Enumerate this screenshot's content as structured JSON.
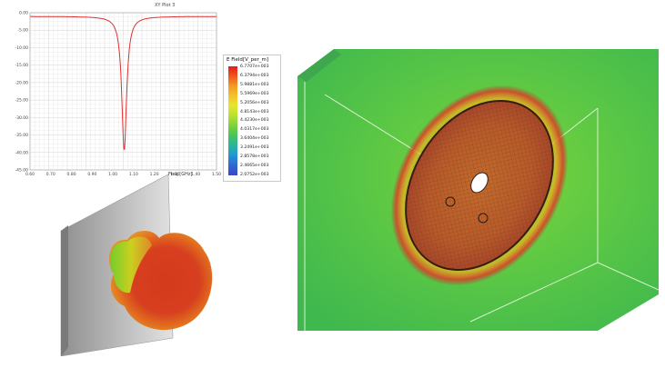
{
  "plot": {
    "title": "XY Plot 3",
    "y_ticks": [
      "0.00",
      "-5.00",
      "-10.00",
      "-15.00",
      "-20.00",
      "-25.00",
      "-30.00",
      "-35.00",
      "-40.00",
      "-45.00"
    ],
    "x_ticks": [
      "0.60",
      "0.70",
      "0.80",
      "0.90",
      "1.00",
      "1.10",
      "1.20",
      "1.30",
      "1.40",
      "1.50"
    ],
    "curve_color": "#e03030",
    "xlabel": "Freq [GHz]"
  },
  "legend": {
    "title": "E Field[V_per_m]",
    "ticks": [
      "6.7707e+003",
      "6.3794e+003",
      "5.9881e+003",
      "5.5969e+003",
      "5.2056e+003",
      "4.8143e+003",
      "4.4230e+003",
      "4.0317e+003",
      "3.6404e+003",
      "3.2491e+003",
      "2.8578e+003",
      "2.4665e+003",
      "2.0752e+003"
    ]
  },
  "colors": {
    "sim_background": "#4bbf3e",
    "hot": "#c0392b",
    "pattern_red": "#d63a1f"
  },
  "icons": {
    "pattern": "radiation-pattern",
    "simulation": "e-field-simulation"
  }
}
